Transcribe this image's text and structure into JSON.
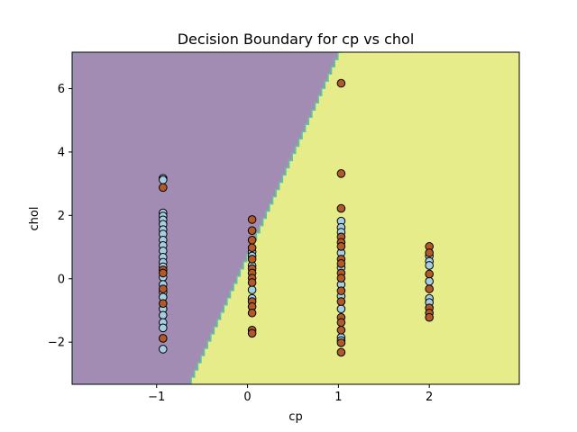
{
  "chart_data": {
    "type": "scatter",
    "title": "Decision Boundary for cp vs chol",
    "xlabel": "cp",
    "ylabel": "chol",
    "xlim": [
      -1.93,
      2.99
    ],
    "ylim": [
      -3.33,
      7.15
    ],
    "xticks": [
      -1,
      0,
      1,
      2
    ],
    "xtick_labels": [
      "−1",
      "0",
      "1",
      "2"
    ],
    "yticks": [
      -2,
      0,
      2,
      4,
      6
    ],
    "ytick_labels": [
      "−2",
      "0",
      "2",
      "4",
      "6"
    ],
    "grid": false,
    "regions": {
      "left_class_color": "#a38cb4",
      "right_class_color": "#e6ec8a",
      "boundary_edge_color": "#5fc4a0",
      "boundary_line": [
        [
          -0.62,
          -3.33
        ],
        [
          1.03,
          7.15
        ]
      ]
    },
    "class_colors": {
      "light_blue": "#a6cee3",
      "brown": "#b15928"
    },
    "series": [
      {
        "color": "light_blue",
        "points": [
          [
            -0.93,
            3.17
          ],
          [
            -0.93,
            3.12
          ],
          [
            -0.93,
            2.08
          ],
          [
            -0.93,
            1.98
          ],
          [
            -0.93,
            1.86
          ],
          [
            -0.93,
            1.72
          ],
          [
            -0.93,
            1.55
          ],
          [
            -0.93,
            1.41
          ],
          [
            -0.93,
            1.22
          ],
          [
            -0.93,
            1.05
          ],
          [
            -0.93,
            0.88
          ],
          [
            -0.93,
            0.68
          ],
          [
            -0.93,
            0.52
          ],
          [
            -0.93,
            0.38
          ],
          [
            -0.93,
            0.05
          ],
          [
            -0.93,
            -0.18
          ],
          [
            -0.93,
            -0.42
          ],
          [
            -0.93,
            -0.58
          ],
          [
            -0.93,
            -0.95
          ],
          [
            -0.93,
            -1.15
          ],
          [
            -0.93,
            -1.38
          ],
          [
            -0.93,
            -1.55
          ],
          [
            -0.93,
            -2.22
          ],
          [
            0.05,
            0.85
          ],
          [
            0.05,
            0.72
          ],
          [
            0.05,
            0.42
          ],
          [
            0.05,
            -0.35
          ],
          [
            0.05,
            -0.62
          ],
          [
            1.03,
            1.82
          ],
          [
            1.03,
            1.62
          ],
          [
            1.03,
            1.47
          ],
          [
            1.03,
            0.82
          ],
          [
            1.03,
            0.35
          ],
          [
            1.03,
            -0.18
          ],
          [
            1.03,
            -0.55
          ],
          [
            1.03,
            -0.95
          ],
          [
            1.03,
            -1.85
          ],
          [
            1.03,
            -1.95
          ],
          [
            2.0,
            0.72
          ],
          [
            2.0,
            0.55
          ],
          [
            2.0,
            0.42
          ],
          [
            2.0,
            -0.08
          ],
          [
            2.0,
            -0.62
          ],
          [
            2.0,
            -0.75
          ]
        ]
      },
      {
        "color": "brown",
        "points": [
          [
            -0.93,
            2.88
          ],
          [
            -0.93,
            0.28
          ],
          [
            -0.93,
            0.18
          ],
          [
            -0.93,
            -0.32
          ],
          [
            -0.93,
            -0.78
          ],
          [
            -0.93,
            -1.88
          ],
          [
            0.05,
            1.87
          ],
          [
            0.05,
            1.52
          ],
          [
            0.05,
            1.22
          ],
          [
            0.05,
            0.98
          ],
          [
            0.05,
            0.62
          ],
          [
            0.05,
            0.32
          ],
          [
            0.05,
            0.18
          ],
          [
            0.05,
            0.02
          ],
          [
            0.05,
            -0.12
          ],
          [
            0.05,
            -0.72
          ],
          [
            0.05,
            -0.88
          ],
          [
            0.05,
            -1.08
          ],
          [
            0.05,
            -1.62
          ],
          [
            0.05,
            -1.72
          ],
          [
            1.03,
            6.17
          ],
          [
            1.03,
            3.32
          ],
          [
            1.03,
            2.22
          ],
          [
            1.03,
            1.32
          ],
          [
            1.03,
            1.15
          ],
          [
            1.03,
            1.02
          ],
          [
            1.03,
            0.62
          ],
          [
            1.03,
            0.48
          ],
          [
            1.03,
            0.18
          ],
          [
            1.03,
            0.02
          ],
          [
            1.03,
            -0.38
          ],
          [
            1.03,
            -0.72
          ],
          [
            1.03,
            -1.22
          ],
          [
            1.03,
            -1.38
          ],
          [
            1.03,
            -1.62
          ],
          [
            1.03,
            -2.02
          ],
          [
            1.03,
            -2.32
          ],
          [
            2.0,
            1.02
          ],
          [
            2.0,
            0.82
          ],
          [
            2.0,
            0.15
          ],
          [
            2.0,
            -0.32
          ],
          [
            2.0,
            -0.92
          ],
          [
            2.0,
            -1.08
          ],
          [
            2.0,
            -1.22
          ]
        ]
      }
    ]
  }
}
